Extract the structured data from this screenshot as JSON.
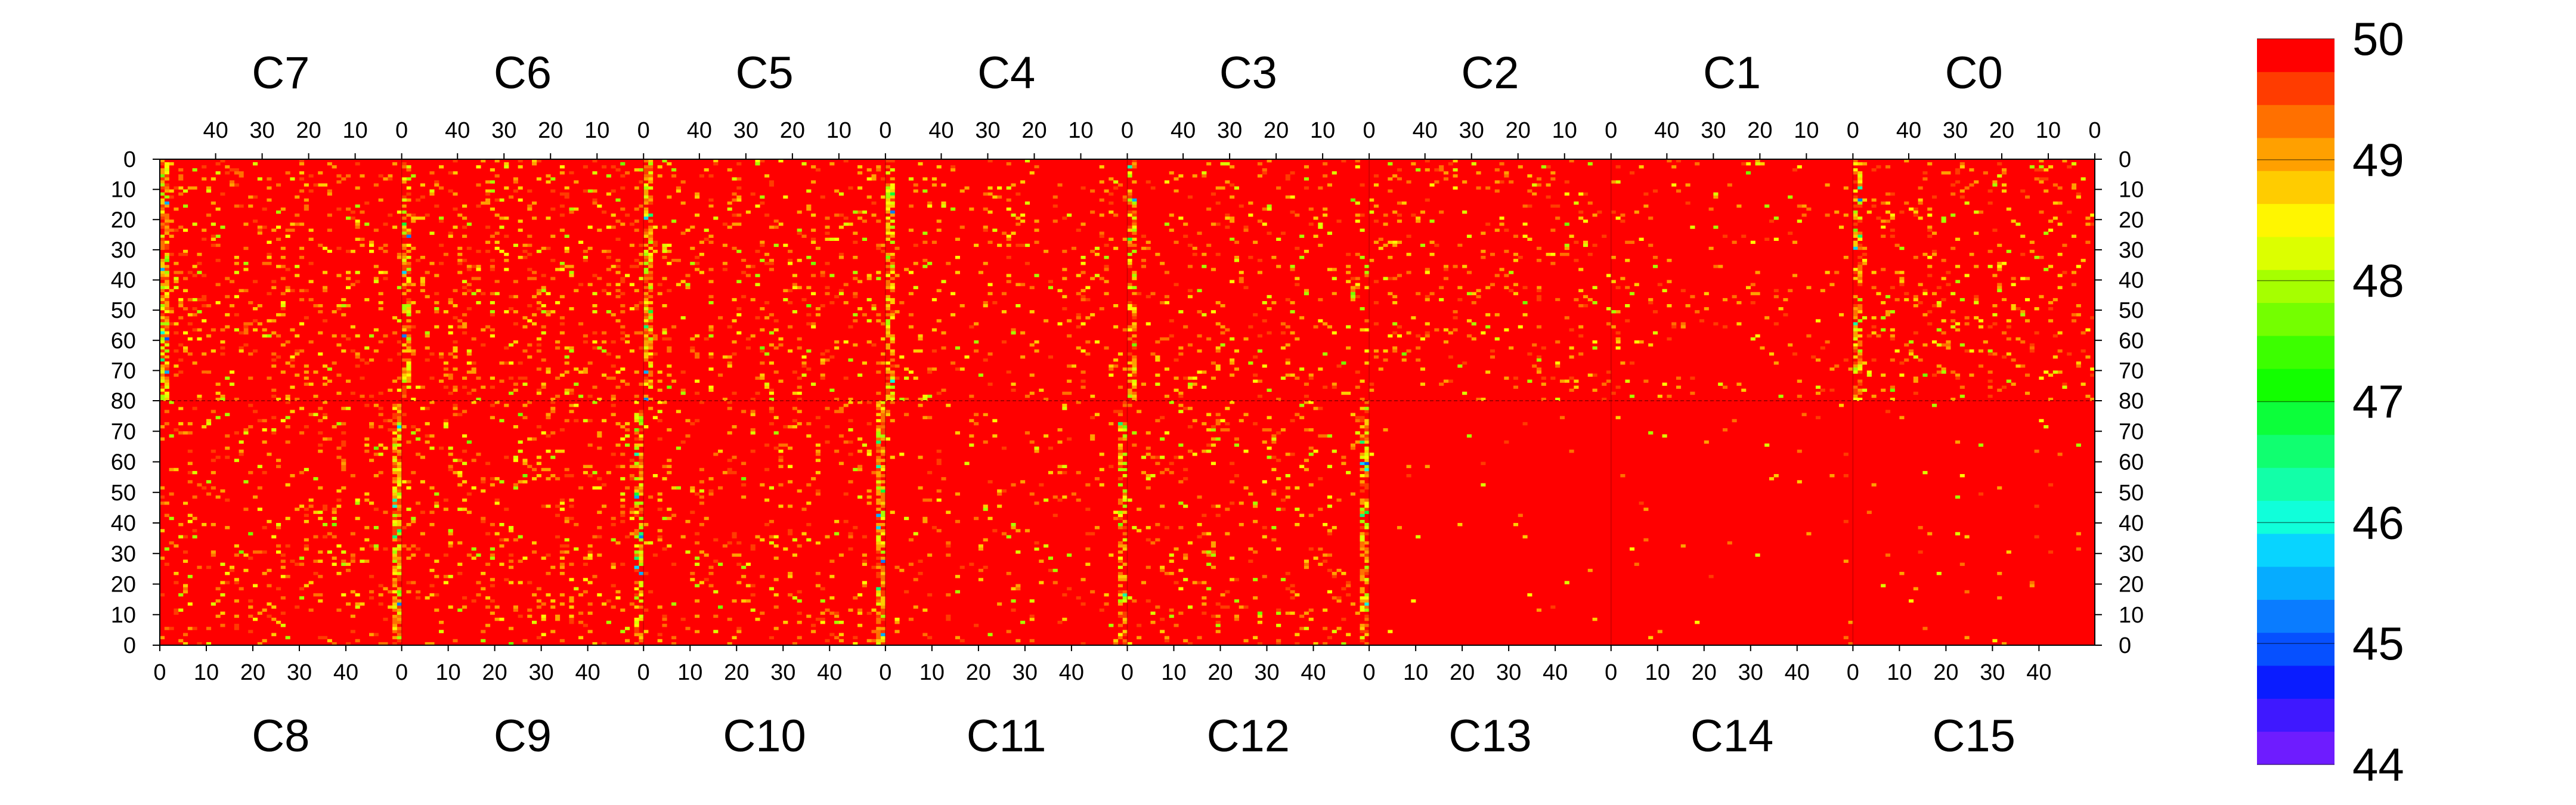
{
  "chart_data": {
    "type": "heatmap",
    "title": "",
    "top_chips": [
      "C7",
      "C6",
      "C5",
      "C4",
      "C3",
      "C2",
      "C1",
      "C0"
    ],
    "bottom_chips": [
      "C8",
      "C9",
      "C10",
      "C11",
      "C12",
      "C13",
      "C14",
      "C15"
    ],
    "top_x_ticks": [
      "40",
      "30",
      "20",
      "10",
      "0"
    ],
    "top_x_tick_values": [
      40,
      30,
      20,
      10,
      0
    ],
    "bottom_x_ticks": [
      "0",
      "10",
      "20",
      "30",
      "40"
    ],
    "bottom_x_tick_values": [
      0,
      10,
      20,
      30,
      40
    ],
    "top_half_y_ticks": [
      "0",
      "10",
      "20",
      "30",
      "40",
      "50",
      "60",
      "70",
      "80"
    ],
    "top_half_y_values": [
      0,
      10,
      20,
      30,
      40,
      50,
      60,
      70,
      80
    ],
    "bottom_half_y_ticks": [
      "70",
      "60",
      "50",
      "40",
      "30",
      "20",
      "10",
      "0"
    ],
    "bottom_half_y_values": [
      70,
      60,
      50,
      40,
      30,
      20,
      10,
      0
    ],
    "columns_per_chip": 52,
    "rows_per_half": 80,
    "zlim": [
      44,
      50
    ],
    "colorbar_ticks": [
      "50",
      "49",
      "48",
      "47",
      "46",
      "45",
      "44"
    ],
    "colorbar_tick_values": [
      50,
      49,
      48,
      47,
      46,
      45,
      44
    ],
    "colorbar_colors": [
      "#6e1cff",
      "#3f18ff",
      "#0a1cff",
      "#0650ff",
      "#0a7cff",
      "#06acff",
      "#08d4ff",
      "#10ffda",
      "#12ffa8",
      "#10ff70",
      "#0cff3a",
      "#12ff00",
      "#3cff00",
      "#74ff00",
      "#a6ff00",
      "#dcff00",
      "#fff600",
      "#ffcc00",
      "#ffa000",
      "#ff7000",
      "#ff3c00",
      "#ff0000"
    ],
    "value_mix_note": "most cells at 50 (red); scattered cells 48-49.5 (yellow/orange); rare cells 45-47; chip boundary columns show more low values; C13, C14, C15 nearly uniform red",
    "chips_top": [
      {
        "name": "C7",
        "density": 0.12,
        "edge_col": 51,
        "edge_density": 0.85
      },
      {
        "name": "C6",
        "density": 0.13,
        "edge_col": 51,
        "edge_density": 0.6
      },
      {
        "name": "C5",
        "density": 0.1,
        "edge_col": 51,
        "edge_density": 0.75
      },
      {
        "name": "C4",
        "density": 0.08,
        "edge_col": 51,
        "edge_density": 0.7
      },
      {
        "name": "C3",
        "density": 0.08,
        "edge_col": 51,
        "edge_density": 0.55
      },
      {
        "name": "C2",
        "density": 0.08,
        "edge_col": 51,
        "edge_density": 0.1
      },
      {
        "name": "C1",
        "density": 0.04,
        "edge_col": 51,
        "edge_density": 0.1
      },
      {
        "name": "C0",
        "density": 0.1,
        "edge_col": 51,
        "edge_density": 0.6
      }
    ],
    "chips_bottom": [
      {
        "name": "C8",
        "density": 0.1,
        "edge_col": 51,
        "edge_density": 0.85
      },
      {
        "name": "C9",
        "density": 0.1,
        "edge_col": 51,
        "edge_density": 0.55
      },
      {
        "name": "C10",
        "density": 0.09,
        "edge_col": 51,
        "edge_density": 0.8
      },
      {
        "name": "C11",
        "density": 0.05,
        "edge_col": 51,
        "edge_density": 0.55
      },
      {
        "name": "C12",
        "density": 0.08,
        "edge_col": 51,
        "edge_density": 0.55
      },
      {
        "name": "C13",
        "density": 0.008,
        "edge_col": 51,
        "edge_density": 0.0
      },
      {
        "name": "C14",
        "density": 0.008,
        "edge_col": 51,
        "edge_density": 0.02
      },
      {
        "name": "C15",
        "density": 0.01,
        "edge_col": 51,
        "edge_density": 0.0
      }
    ]
  }
}
